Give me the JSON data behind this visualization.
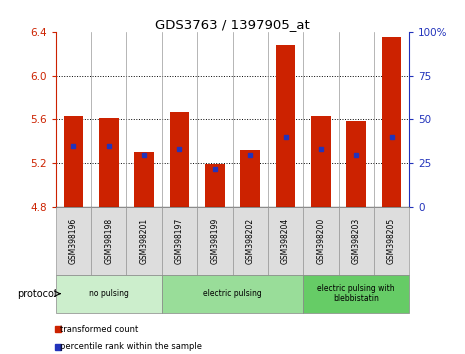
{
  "title": "GDS3763 / 1397905_at",
  "samples": [
    "GSM398196",
    "GSM398198",
    "GSM398201",
    "GSM398197",
    "GSM398199",
    "GSM398202",
    "GSM398204",
    "GSM398200",
    "GSM398203",
    "GSM398205"
  ],
  "transformed_count": [
    5.63,
    5.61,
    5.3,
    5.67,
    5.19,
    5.32,
    6.28,
    5.63,
    5.59,
    6.35
  ],
  "percentile_rank": [
    35,
    35,
    30,
    33,
    22,
    30,
    40,
    33,
    30,
    40
  ],
  "y_min": 4.8,
  "y_max": 6.4,
  "y_ticks": [
    4.8,
    5.2,
    5.6,
    6.0,
    6.4
  ],
  "y2_ticks": [
    0,
    25,
    50,
    75,
    100
  ],
  "bar_color": "#cc2200",
  "dot_color": "#2233bb",
  "protocol_groups": [
    {
      "label": "no pulsing",
      "start": 0,
      "end": 3,
      "color": "#cceecc"
    },
    {
      "label": "electric pulsing",
      "start": 3,
      "end": 7,
      "color": "#99dd99"
    },
    {
      "label": "electric pulsing with\nblebbistatin",
      "start": 7,
      "end": 10,
      "color": "#66cc66"
    }
  ],
  "tick_color_left": "#cc2200",
  "tick_color_right": "#2233bb"
}
